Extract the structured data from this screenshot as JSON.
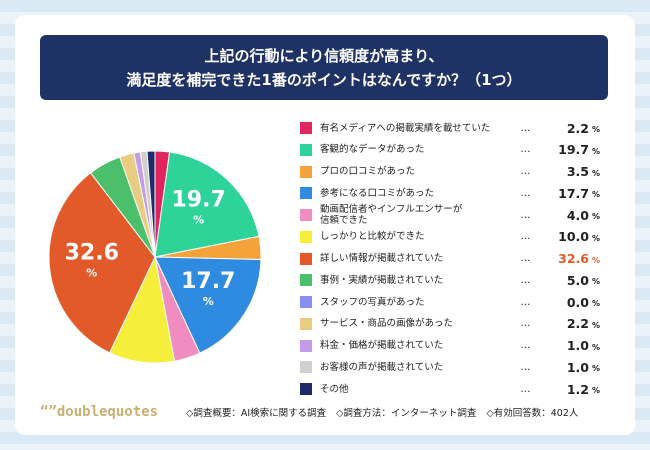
{
  "title_lines": [
    "上記の行動により信頼度が高まり、",
    "満足度を補完できた1番のポイントはなんですか？（1つ）"
  ],
  "chart_data": {
    "type": "pie",
    "categories": [
      "有名メディアへの掲載実績を載せていた",
      "客観的なデータがあった",
      "プロの口コミがあった",
      "参考になる口コミがあった",
      "動画配信者やインフルエンサーが\n信頼できた",
      "しっかりと比較ができた",
      "詳しい情報が掲載されていた",
      "事例・実績が掲載されていた",
      "スタッフの写真があった",
      "サービス・商品の画像があった",
      "料金・価格が掲載されていた",
      "お客様の声が掲載されていた",
      "その他"
    ],
    "values": [
      2.2,
      19.7,
      3.5,
      17.7,
      4,
      10,
      32.6,
      5,
      0,
      2.2,
      1,
      1,
      1.2
    ],
    "value_labels": [
      "2.2",
      "19.7",
      "3.5",
      "17.7",
      "4.0",
      "10.0",
      "32.6",
      "5.0",
      "0.0",
      "2.2",
      "1.0",
      "1.0",
      "1.2"
    ],
    "unit": "%",
    "colors": [
      "#e0245e",
      "#2ed39a",
      "#f5a23a",
      "#2f8be0",
      "#f08cc0",
      "#f5ee3a",
      "#e35a2a",
      "#4cbf6a",
      "#8a8ef0",
      "#e8cc80",
      "#c49be8",
      "#cfcfcf",
      "#1f2a6b"
    ],
    "leader": "…"
  },
  "footer": {
    "logo": "“”doublequotes",
    "notes": [
      "◇調査概要：AI検索に関する調査",
      "◇調査方法：インターネット調査",
      "◇有効回答数：402人"
    ]
  }
}
